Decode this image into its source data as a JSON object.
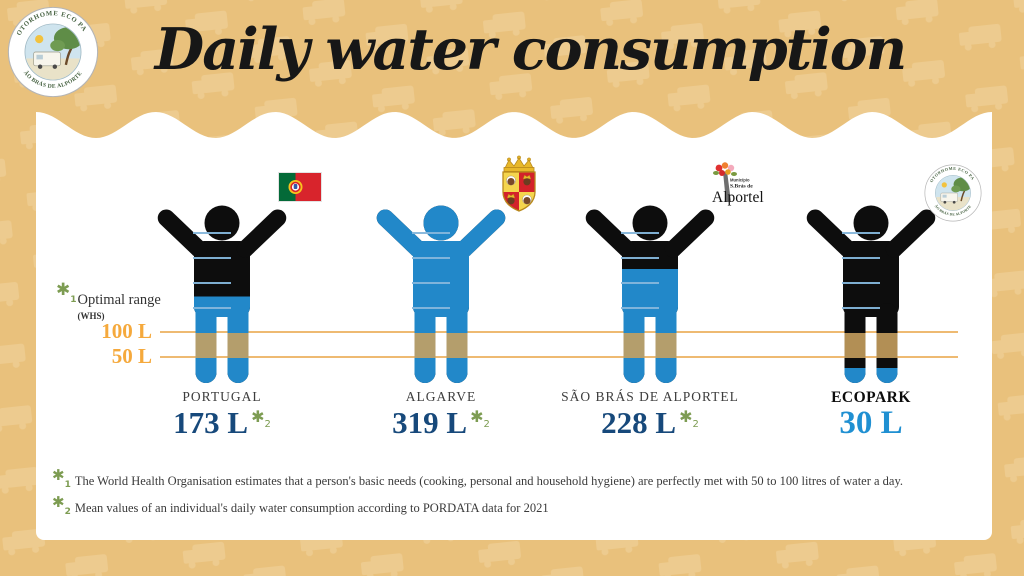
{
  "title": "Daily water consumption",
  "logo": {
    "text_top": "MOTORHOME ECO PARK",
    "text_bottom": "SÃO BRÁS DE ALPORTEL"
  },
  "chart_data": {
    "type": "pictogram-bar",
    "title": "Daily water consumption",
    "unit": "L",
    "categories": [
      "PORTUGAL",
      "ALGARVE",
      "SÃO BRÁS DE ALPORTEL",
      "ECOPARK"
    ],
    "values": [
      173,
      319,
      228,
      30
    ],
    "value_labels": [
      "173 L",
      "319 L",
      "228 L",
      "30 L"
    ],
    "footnote_marker": "✱",
    "footnote_refs": [
      "2",
      "2",
      "2",
      null
    ],
    "emphasis": [
      false,
      false,
      false,
      true
    ],
    "value_color_keys": [
      "value_navy",
      "value_navy",
      "value_navy",
      "ecopark_blue"
    ],
    "emblems": [
      "portugal-flag",
      "algarve-coat-of-arms",
      "sao-bras-municipality-logo",
      "motorhome-eco-park-badge"
    ],
    "reference_lines": [
      {
        "value": 100,
        "label": "100 L"
      },
      {
        "value": 50,
        "label": "50 L"
      }
    ],
    "tick_values_l": [
      300,
      250,
      200,
      150
    ],
    "optimal_range": {
      "marker": "✱",
      "marker_sub": "1",
      "label": "Optimal range",
      "source_label": "(WHS)",
      "min_l": 50,
      "max_l": 100
    },
    "ylim": [
      0,
      340
    ],
    "orientation": "vertical-fill"
  },
  "municipality_logo_text": {
    "lines": [
      "Município",
      "S.Brás de",
      "Alportel"
    ]
  },
  "footnotes": [
    {
      "marker": "✱",
      "sub": "1",
      "text": "The World Health Organisation estimates that a person's basic needs (cooking, personal and household hygiene) are perfectly met with 50 to 100 litres of water a day."
    },
    {
      "marker": "✱",
      "sub": "2",
      "text": "Mean values of an individual's daily water consumption according to PORDATA data for 2021"
    }
  ],
  "colors": {
    "background": "#e9c17c",
    "pattern": "#edcb8f",
    "card": "#ffffff",
    "figure_black": "#0d0d0d",
    "water_blue": "#2288c9",
    "accent_orange": "#f5a93c",
    "line_orange": "#eeba72",
    "value_navy": "#17497b",
    "ecopark_blue": "#2090d2",
    "asterisk_green": "#7d9c52",
    "optimal_band": "#c9a260",
    "tick_blue": "#85b7dc",
    "label_gray": "#3d3d3d",
    "footnote_gray": "#3a3a3a",
    "title_black": "#171717",
    "badge_text": "#44603f"
  }
}
